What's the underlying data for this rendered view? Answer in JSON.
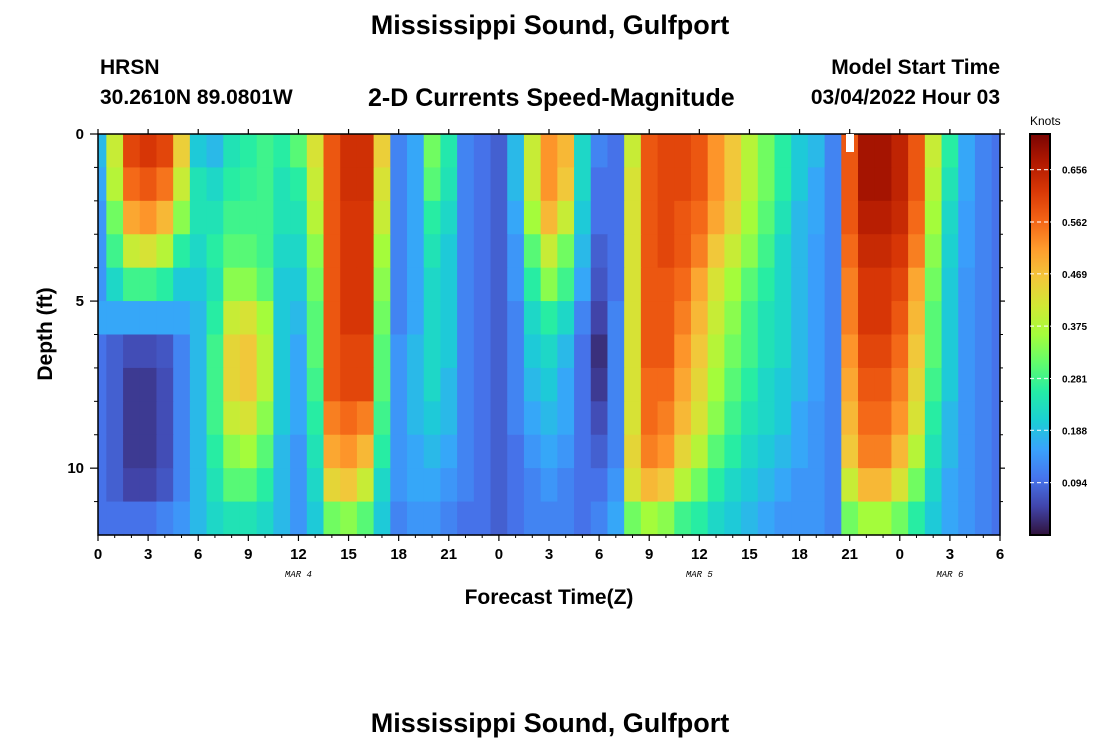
{
  "header": {
    "title": "Mississippi Sound, Gulfport",
    "station_id": "HRSN",
    "station_coords": "30.2610N  89.0801W",
    "plot_title": "2-D Currents Speed-Magnitude",
    "model_start_label": "Model Start Time",
    "model_start_value": "03/04/2022 Hour 03"
  },
  "footer": {
    "title": "Mississippi Sound, Gulfport"
  },
  "chart_data": {
    "type": "heatmap",
    "title": "2-D Currents Speed-Magnitude",
    "xlabel": "Forecast Time(Z)",
    "ylabel": "Depth (ft)",
    "x_unit": "hours since 03/04 00Z",
    "xlim": [
      0,
      54
    ],
    "ylim": [
      0,
      12
    ],
    "y_inverted": true,
    "x_tick_values": [
      0,
      3,
      6,
      9,
      12,
      15,
      18,
      21,
      24,
      27,
      30,
      33,
      36,
      39,
      42,
      45,
      48,
      51,
      54
    ],
    "x_tick_labels": [
      "0",
      "3",
      "6",
      "9",
      "12",
      "15",
      "18",
      "21",
      "0",
      "3",
      "6",
      "9",
      "12",
      "15",
      "18",
      "21",
      "0",
      "3",
      "6"
    ],
    "y_tick_values": [
      0,
      5,
      10
    ],
    "y_tick_labels": [
      "0",
      "5",
      "10"
    ],
    "date_labels": [
      {
        "text": "MAR 4",
        "x": 12
      },
      {
        "text": "MAR 5",
        "x": 36
      },
      {
        "text": "MAR 6",
        "x": 51
      }
    ],
    "colorbar": {
      "title": "Knots",
      "min": 0,
      "max": 0.72,
      "ticks": [
        0.094,
        0.188,
        0.281,
        0.375,
        0.469,
        0.562,
        0.656
      ],
      "tick_labels": [
        "0.094",
        "0.188",
        "0.281",
        "0.375",
        "0.469",
        "0.562",
        "0.656"
      ],
      "colormap": [
        "#30123b",
        "#4145ab",
        "#4675ed",
        "#39a2fc",
        "#1bcfd4",
        "#24eca6",
        "#61fc6c",
        "#a4fc3b",
        "#d1e834",
        "#f3c63a",
        "#fe9b2d",
        "#f36315",
        "#d93806",
        "#b11901",
        "#7a0402"
      ]
    },
    "layers": [
      {
        "depth_top": 0,
        "depth_bottom": 1
      },
      {
        "depth_top": 1,
        "depth_bottom": 2
      },
      {
        "depth_top": 2,
        "depth_bottom": 3
      },
      {
        "depth_top": 3,
        "depth_bottom": 4
      },
      {
        "depth_top": 4,
        "depth_bottom": 5
      },
      {
        "depth_top": 5,
        "depth_bottom": 6
      },
      {
        "depth_top": 6,
        "depth_bottom": 7
      },
      {
        "depth_top": 7,
        "depth_bottom": 8
      },
      {
        "depth_top": 8,
        "depth_bottom": 9
      },
      {
        "depth_top": 9,
        "depth_bottom": 10
      },
      {
        "depth_top": 10,
        "depth_bottom": 11
      },
      {
        "depth_top": 11,
        "depth_bottom": 12
      }
    ],
    "times": [
      0,
      1,
      2,
      3,
      4,
      5,
      6,
      7,
      8,
      9,
      10,
      11,
      12,
      13,
      14,
      15,
      16,
      17,
      18,
      19,
      20,
      21,
      22,
      23,
      24,
      25,
      26,
      27,
      28,
      29,
      30,
      31,
      32,
      33,
      34,
      35,
      36,
      37,
      38,
      39,
      40,
      41,
      42,
      43,
      44,
      45,
      46,
      47,
      48,
      49,
      50,
      51,
      52,
      53,
      54
    ],
    "speed_knots": [
      [
        0.18,
        0.4,
        0.6,
        0.62,
        0.6,
        0.45,
        0.2,
        0.18,
        0.24,
        0.26,
        0.28,
        0.26,
        0.3,
        0.42,
        0.58,
        0.63,
        0.63,
        0.45,
        0.12,
        0.16,
        0.32,
        0.25,
        0.12,
        0.1,
        0.08,
        0.18,
        0.4,
        0.52,
        0.48,
        0.22,
        0.12,
        0.1,
        0.4,
        0.58,
        0.6,
        0.6,
        0.58,
        0.52,
        0.46,
        0.38,
        0.32,
        0.26,
        0.2,
        0.18,
        0.12,
        0.58,
        0.68,
        0.68,
        0.65,
        0.58,
        0.4,
        0.26,
        0.16,
        0.12,
        0.1
      ],
      [
        0.16,
        0.38,
        0.56,
        0.58,
        0.55,
        0.4,
        0.24,
        0.22,
        0.26,
        0.27,
        0.28,
        0.24,
        0.26,
        0.4,
        0.58,
        0.63,
        0.63,
        0.42,
        0.12,
        0.16,
        0.3,
        0.24,
        0.12,
        0.1,
        0.08,
        0.18,
        0.4,
        0.52,
        0.46,
        0.22,
        0.1,
        0.1,
        0.42,
        0.58,
        0.6,
        0.6,
        0.58,
        0.52,
        0.46,
        0.38,
        0.32,
        0.26,
        0.2,
        0.16,
        0.12,
        0.58,
        0.68,
        0.68,
        0.65,
        0.58,
        0.38,
        0.24,
        0.16,
        0.12,
        0.1
      ],
      [
        0.14,
        0.32,
        0.5,
        0.52,
        0.48,
        0.34,
        0.24,
        0.24,
        0.28,
        0.28,
        0.28,
        0.24,
        0.24,
        0.38,
        0.58,
        0.62,
        0.62,
        0.4,
        0.12,
        0.16,
        0.26,
        0.22,
        0.12,
        0.1,
        0.08,
        0.16,
        0.36,
        0.48,
        0.4,
        0.2,
        0.1,
        0.1,
        0.42,
        0.58,
        0.6,
        0.58,
        0.56,
        0.5,
        0.44,
        0.36,
        0.3,
        0.24,
        0.18,
        0.16,
        0.12,
        0.58,
        0.66,
        0.66,
        0.64,
        0.56,
        0.36,
        0.22,
        0.15,
        0.12,
        0.1
      ],
      [
        0.14,
        0.28,
        0.4,
        0.42,
        0.38,
        0.26,
        0.22,
        0.26,
        0.3,
        0.3,
        0.28,
        0.22,
        0.22,
        0.34,
        0.58,
        0.62,
        0.62,
        0.36,
        0.12,
        0.16,
        0.24,
        0.2,
        0.12,
        0.1,
        0.08,
        0.14,
        0.3,
        0.4,
        0.32,
        0.18,
        0.08,
        0.1,
        0.42,
        0.58,
        0.6,
        0.58,
        0.54,
        0.46,
        0.4,
        0.34,
        0.28,
        0.22,
        0.18,
        0.15,
        0.12,
        0.56,
        0.64,
        0.64,
        0.62,
        0.54,
        0.34,
        0.21,
        0.15,
        0.12,
        0.1
      ],
      [
        0.14,
        0.22,
        0.28,
        0.28,
        0.26,
        0.2,
        0.2,
        0.24,
        0.34,
        0.34,
        0.3,
        0.2,
        0.2,
        0.32,
        0.58,
        0.62,
        0.62,
        0.34,
        0.12,
        0.16,
        0.22,
        0.2,
        0.12,
        0.1,
        0.08,
        0.14,
        0.26,
        0.34,
        0.28,
        0.16,
        0.07,
        0.1,
        0.42,
        0.58,
        0.58,
        0.56,
        0.5,
        0.42,
        0.36,
        0.3,
        0.26,
        0.22,
        0.18,
        0.15,
        0.12,
        0.54,
        0.62,
        0.62,
        0.6,
        0.5,
        0.32,
        0.2,
        0.14,
        0.12,
        0.1
      ],
      [
        0.16,
        0.16,
        0.16,
        0.16,
        0.16,
        0.16,
        0.18,
        0.26,
        0.4,
        0.42,
        0.36,
        0.2,
        0.18,
        0.3,
        0.58,
        0.62,
        0.62,
        0.32,
        0.12,
        0.16,
        0.22,
        0.2,
        0.12,
        0.1,
        0.08,
        0.12,
        0.22,
        0.26,
        0.22,
        0.12,
        0.05,
        0.12,
        0.42,
        0.58,
        0.58,
        0.54,
        0.48,
        0.4,
        0.34,
        0.28,
        0.24,
        0.22,
        0.18,
        0.15,
        0.12,
        0.54,
        0.62,
        0.62,
        0.58,
        0.48,
        0.3,
        0.2,
        0.14,
        0.12,
        0.1
      ],
      [
        0.1,
        0.08,
        0.06,
        0.06,
        0.07,
        0.12,
        0.18,
        0.28,
        0.44,
        0.46,
        0.38,
        0.2,
        0.16,
        0.3,
        0.58,
        0.6,
        0.6,
        0.3,
        0.14,
        0.18,
        0.22,
        0.2,
        0.12,
        0.1,
        0.08,
        0.12,
        0.2,
        0.22,
        0.18,
        0.1,
        0.03,
        0.12,
        0.42,
        0.58,
        0.58,
        0.52,
        0.46,
        0.38,
        0.32,
        0.28,
        0.24,
        0.22,
        0.18,
        0.15,
        0.12,
        0.52,
        0.6,
        0.6,
        0.56,
        0.46,
        0.3,
        0.2,
        0.14,
        0.12,
        0.1
      ],
      [
        0.1,
        0.08,
        0.04,
        0.04,
        0.06,
        0.12,
        0.18,
        0.28,
        0.44,
        0.46,
        0.38,
        0.2,
        0.16,
        0.28,
        0.58,
        0.6,
        0.6,
        0.3,
        0.14,
        0.18,
        0.22,
        0.18,
        0.12,
        0.1,
        0.08,
        0.12,
        0.18,
        0.2,
        0.16,
        0.1,
        0.04,
        0.12,
        0.42,
        0.56,
        0.56,
        0.5,
        0.44,
        0.36,
        0.3,
        0.26,
        0.22,
        0.2,
        0.18,
        0.15,
        0.12,
        0.5,
        0.58,
        0.58,
        0.54,
        0.44,
        0.28,
        0.2,
        0.14,
        0.12,
        0.1
      ],
      [
        0.1,
        0.08,
        0.04,
        0.04,
        0.06,
        0.12,
        0.18,
        0.28,
        0.4,
        0.42,
        0.34,
        0.2,
        0.16,
        0.26,
        0.54,
        0.56,
        0.54,
        0.28,
        0.14,
        0.18,
        0.2,
        0.18,
        0.12,
        0.1,
        0.08,
        0.12,
        0.16,
        0.18,
        0.16,
        0.1,
        0.06,
        0.12,
        0.42,
        0.56,
        0.54,
        0.48,
        0.42,
        0.34,
        0.28,
        0.24,
        0.22,
        0.2,
        0.16,
        0.14,
        0.12,
        0.48,
        0.56,
        0.56,
        0.52,
        0.42,
        0.26,
        0.18,
        0.14,
        0.12,
        0.1
      ],
      [
        0.1,
        0.08,
        0.04,
        0.04,
        0.06,
        0.12,
        0.18,
        0.26,
        0.34,
        0.36,
        0.3,
        0.18,
        0.14,
        0.24,
        0.5,
        0.52,
        0.48,
        0.26,
        0.14,
        0.16,
        0.18,
        0.16,
        0.12,
        0.1,
        0.08,
        0.1,
        0.14,
        0.16,
        0.14,
        0.1,
        0.08,
        0.12,
        0.44,
        0.54,
        0.52,
        0.44,
        0.38,
        0.3,
        0.26,
        0.22,
        0.2,
        0.18,
        0.16,
        0.14,
        0.12,
        0.46,
        0.54,
        0.54,
        0.48,
        0.38,
        0.24,
        0.18,
        0.14,
        0.12,
        0.1
      ],
      [
        0.1,
        0.08,
        0.05,
        0.05,
        0.07,
        0.12,
        0.18,
        0.24,
        0.3,
        0.3,
        0.26,
        0.18,
        0.14,
        0.22,
        0.44,
        0.46,
        0.4,
        0.22,
        0.14,
        0.16,
        0.16,
        0.14,
        0.12,
        0.1,
        0.08,
        0.1,
        0.12,
        0.14,
        0.12,
        0.1,
        0.1,
        0.14,
        0.42,
        0.48,
        0.46,
        0.38,
        0.32,
        0.26,
        0.22,
        0.2,
        0.18,
        0.16,
        0.14,
        0.14,
        0.12,
        0.4,
        0.48,
        0.48,
        0.42,
        0.32,
        0.22,
        0.16,
        0.14,
        0.12,
        0.1
      ],
      [
        0.1,
        0.1,
        0.1,
        0.1,
        0.12,
        0.14,
        0.18,
        0.22,
        0.24,
        0.24,
        0.22,
        0.18,
        0.14,
        0.2,
        0.32,
        0.34,
        0.3,
        0.2,
        0.12,
        0.14,
        0.14,
        0.12,
        0.1,
        0.1,
        0.08,
        0.1,
        0.12,
        0.12,
        0.12,
        0.1,
        0.12,
        0.16,
        0.32,
        0.36,
        0.34,
        0.28,
        0.26,
        0.22,
        0.2,
        0.18,
        0.16,
        0.14,
        0.14,
        0.14,
        0.12,
        0.32,
        0.36,
        0.36,
        0.32,
        0.26,
        0.2,
        0.16,
        0.14,
        0.12,
        0.1
      ]
    ]
  }
}
